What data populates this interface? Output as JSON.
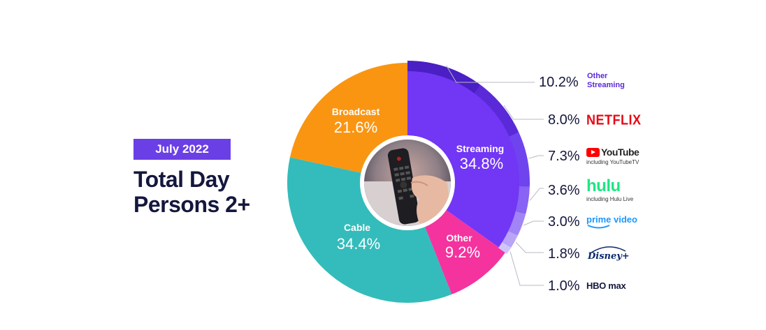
{
  "header": {
    "badge": "July 2022",
    "title_line1": "Total Day",
    "title_line2": "Persons 2+"
  },
  "chart_data": {
    "type": "pie",
    "segments": [
      {
        "label": "Streaming",
        "value": 34.8,
        "color": "#7236f5"
      },
      {
        "label": "Other",
        "value": 9.2,
        "color": "#f4339f"
      },
      {
        "label": "Cable",
        "value": 34.4,
        "color": "#33bcbb"
      },
      {
        "label": "Broadcast",
        "value": 21.6,
        "color": "#fa9512"
      }
    ],
    "streaming_breakdown": [
      {
        "label": "Other Streaming",
        "value": 10.2,
        "display": "10.2%",
        "color": "#4a1fc4"
      },
      {
        "label": "NETFLIX",
        "value": 8.0,
        "display": "8.0%",
        "color": "#5a2ad8"
      },
      {
        "label": "YouTube",
        "sub": "including YouTubeTV",
        "value": 7.3,
        "display": "7.3%",
        "color": "#6f44ef"
      },
      {
        "label": "hulu",
        "sub": "including Hulu Live",
        "value": 3.6,
        "display": "3.6%",
        "color": "#8863f4"
      },
      {
        "label": "prime video",
        "value": 3.0,
        "display": "3.0%",
        "color": "#a184f6"
      },
      {
        "label": "Disney+",
        "value": 1.8,
        "display": "1.8%",
        "color": "#b9a4f8"
      },
      {
        "label": "HBO max",
        "value": 1.0,
        "display": "1.0%",
        "color": "#d1c4fb"
      }
    ],
    "segment_text": {
      "Streaming": "34.8%",
      "Other": "9.2%",
      "Cable": "34.4%",
      "Broadcast": "21.6%"
    }
  }
}
